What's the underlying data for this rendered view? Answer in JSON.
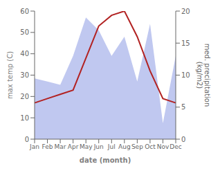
{
  "chart_data": {
    "type": "line",
    "categories": [
      "Jan",
      "Feb",
      "Mar",
      "Apr",
      "May",
      "Jun",
      "Jul",
      "Aug",
      "Sep",
      "Oct",
      "Nov",
      "Dec"
    ],
    "xlabel": "date (month)",
    "ylabel": "max temp (C)",
    "y2label": "med. precipitation\n(kg/m2)",
    "ylim": [
      0,
      60
    ],
    "yticks": [
      0,
      10,
      20,
      30,
      40,
      50,
      60
    ],
    "y2lim": [
      0,
      20
    ],
    "y2ticks": [
      0,
      5,
      10,
      15,
      20
    ],
    "grid": false,
    "series": [
      {
        "type": "area",
        "color": "#c0c8f0",
        "axis": "y2",
        "values": [
          9.5,
          9.0,
          8.5,
          13,
          19,
          17,
          13,
          16,
          9,
          18,
          2.5,
          13
        ]
      },
      {
        "type": "line",
        "color": "#b22222",
        "values": [
          17,
          19,
          21,
          23,
          38,
          53,
          58,
          60,
          48,
          32,
          19,
          17
        ]
      }
    ]
  }
}
